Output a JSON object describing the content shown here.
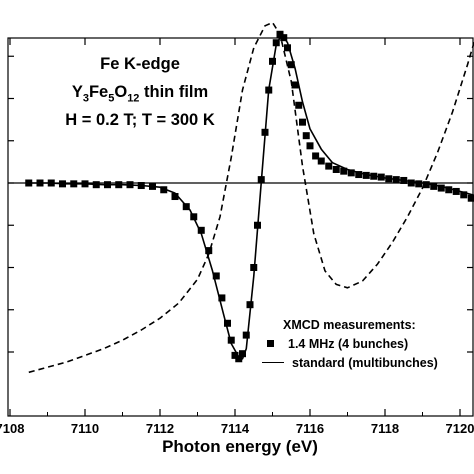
{
  "chart_data": {
    "type": "line",
    "annotation": {
      "line1": "Fe K-edge",
      "line2_parts": [
        "Y",
        "3",
        "Fe",
        "5",
        "O",
        "12",
        " thin film"
      ],
      "line3": "H = 0.2 T; T = 300 K"
    },
    "xlabel": "Photon energy (eV)",
    "ylabel": "",
    "xlim": [
      7108,
      7121
    ],
    "ylim": [
      -1.2,
      1.1
    ],
    "x_ticks": [
      "7108",
      "7110",
      "7112",
      "7114",
      "7116",
      "7118",
      "7120"
    ],
    "x_tick_values": [
      7108,
      7110,
      7112,
      7114,
      7116,
      7118,
      7120
    ],
    "y_tick_count": 7,
    "zero_line": true,
    "legend": {
      "title": "XMCD measurements:",
      "entries": [
        "1.4 MHz (4 bunches)",
        "standard (multibunches)"
      ],
      "placement": "bottom-right"
    },
    "series": [
      {
        "name": "1.4 MHz (4 bunches)",
        "style": "square-markers",
        "color": "#000000",
        "x": [
          7108.5,
          7108.8,
          7109.1,
          7109.4,
          7109.7,
          7110.0,
          7110.3,
          7110.6,
          7110.9,
          7111.2,
          7111.5,
          7111.8,
          7112.1,
          7112.4,
          7112.7,
          7112.9,
          7113.1,
          7113.3,
          7113.5,
          7113.65,
          7113.8,
          7113.9,
          7114.0,
          7114.1,
          7114.2,
          7114.3,
          7114.4,
          7114.5,
          7114.6,
          7114.7,
          7114.8,
          7114.9,
          7115.0,
          7115.1,
          7115.2,
          7115.3,
          7115.4,
          7115.5,
          7115.6,
          7115.7,
          7115.8,
          7115.9,
          7116.0,
          7116.15,
          7116.3,
          7116.5,
          7116.7,
          7116.9,
          7117.1,
          7117.3,
          7117.5,
          7117.7,
          7117.9,
          7118.1,
          7118.3,
          7118.5,
          7118.7,
          7118.9,
          7119.1,
          7119.3,
          7119.5,
          7119.7,
          7119.9,
          7120.1,
          7120.3
        ],
        "y": [
          0.0,
          0.0,
          0.0,
          -0.005,
          -0.005,
          -0.005,
          -0.01,
          -0.01,
          -0.01,
          -0.01,
          -0.015,
          -0.02,
          -0.04,
          -0.08,
          -0.14,
          -0.2,
          -0.28,
          -0.4,
          -0.55,
          -0.68,
          -0.83,
          -0.93,
          -1.02,
          -1.04,
          -1.01,
          -0.9,
          -0.72,
          -0.5,
          -0.25,
          0.02,
          0.3,
          0.55,
          0.72,
          0.83,
          0.88,
          0.86,
          0.8,
          0.7,
          0.58,
          0.46,
          0.36,
          0.28,
          0.22,
          0.16,
          0.13,
          0.1,
          0.08,
          0.07,
          0.06,
          0.05,
          0.045,
          0.04,
          0.035,
          0.025,
          0.02,
          0.015,
          0.0,
          -0.005,
          -0.01,
          -0.02,
          -0.03,
          -0.04,
          -0.05,
          -0.07,
          -0.09
        ]
      },
      {
        "name": "standard (multibunches)",
        "style": "solid",
        "color": "#000000",
        "x": [
          7108.5,
          7109,
          7109.5,
          7110,
          7110.5,
          7111,
          7111.5,
          7112,
          7112.4,
          7112.8,
          7113.1,
          7113.4,
          7113.7,
          7113.9,
          7114.1,
          7114.2,
          7114.3,
          7114.5,
          7114.7,
          7114.9,
          7115.1,
          7115.25,
          7115.4,
          7115.6,
          7115.8,
          7116.0,
          7116.3,
          7116.6,
          7117,
          7117.5,
          7118,
          7118.5,
          7119,
          7119.5,
          7120,
          7120.5
        ],
        "y": [
          0.0,
          0.0,
          -0.005,
          -0.005,
          -0.01,
          -0.01,
          -0.015,
          -0.025,
          -0.06,
          -0.16,
          -0.3,
          -0.52,
          -0.78,
          -0.95,
          -1.03,
          -1.04,
          -0.98,
          -0.55,
          0.0,
          0.55,
          0.82,
          0.88,
          0.83,
          0.68,
          0.48,
          0.32,
          0.2,
          0.12,
          0.08,
          0.05,
          0.03,
          0.015,
          0.0,
          -0.02,
          -0.05,
          -0.08
        ]
      },
      {
        "name": "",
        "style": "dashed",
        "color": "#000000",
        "x": [
          7108.5,
          7109,
          7109.5,
          7110,
          7110.5,
          7111,
          7111.5,
          7112,
          7112.5,
          7113,
          7113.3,
          7113.6,
          7113.9,
          7114.2,
          7114.5,
          7114.8,
          7115.0,
          7115.2,
          7115.5,
          7115.8,
          7116.1,
          7116.4,
          7116.7,
          7117.0,
          7117.4,
          7117.8,
          7118.2,
          7118.6,
          7119.0,
          7119.4,
          7119.8,
          7120.2,
          7120.4
        ],
        "y": [
          -1.12,
          -1.09,
          -1.06,
          -1.02,
          -0.98,
          -0.93,
          -0.87,
          -0.8,
          -0.71,
          -0.57,
          -0.42,
          -0.2,
          0.15,
          0.55,
          0.8,
          0.93,
          0.95,
          0.88,
          0.6,
          0.1,
          -0.3,
          -0.52,
          -0.6,
          -0.62,
          -0.58,
          -0.48,
          -0.35,
          -0.2,
          -0.03,
          0.18,
          0.42,
          0.7,
          0.85
        ]
      }
    ]
  }
}
